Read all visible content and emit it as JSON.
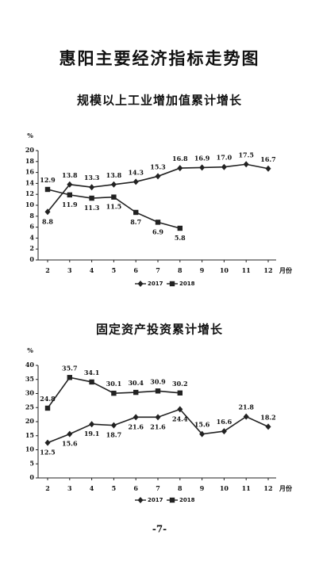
{
  "page_title": "惠阳主要经济指标走势图",
  "page_number": "-7-",
  "chart_data": [
    {
      "type": "line",
      "title": "规模以上工业增加值累计增长",
      "y_label": "%",
      "x_label": "月份",
      "categories": [
        "2",
        "3",
        "4",
        "5",
        "6",
        "7",
        "8",
        "9",
        "10",
        "11",
        "12"
      ],
      "ylim": [
        0,
        20
      ],
      "yticks": [
        0,
        2,
        4,
        6,
        8,
        10,
        12,
        14,
        16,
        18,
        20
      ],
      "series": [
        {
          "name": "2017",
          "color": "#222222",
          "marker": "diamond",
          "values": [
            8.8,
            13.8,
            13.3,
            13.8,
            14.3,
            15.3,
            16.8,
            16.9,
            17.0,
            17.5,
            16.7
          ],
          "value_labels": [
            "8.8",
            "13.8",
            "13.3",
            "13.8",
            "14.3",
            "15.3",
            "16.8",
            "16.9",
            "17.0",
            "17.5",
            "16.7"
          ]
        },
        {
          "name": "2018",
          "color": "#222222",
          "marker": "square",
          "values": [
            12.9,
            11.9,
            11.3,
            11.5,
            8.7,
            6.9,
            5.8,
            null,
            null,
            null,
            null
          ],
          "value_labels": [
            "12.9",
            "11.9",
            "11.3",
            "11.5",
            "8.7",
            "6.9",
            "5.8",
            null,
            null,
            null,
            null
          ]
        }
      ]
    },
    {
      "type": "line",
      "title": "固定资产投资累计增长",
      "y_label": "%",
      "x_label": "月份",
      "categories": [
        "2",
        "3",
        "4",
        "5",
        "6",
        "7",
        "8",
        "9",
        "10",
        "11",
        "12"
      ],
      "ylim": [
        0,
        40
      ],
      "yticks": [
        0,
        5,
        10,
        15,
        20,
        25,
        30,
        35,
        40
      ],
      "series": [
        {
          "name": "2017",
          "color": "#222222",
          "marker": "diamond",
          "values": [
            12.5,
            15.6,
            19.1,
            18.7,
            21.6,
            21.6,
            24.4,
            15.6,
            16.6,
            21.8,
            18.2
          ],
          "value_labels": [
            "12.5",
            "15.6",
            "19.1",
            "18.7",
            "21.6",
            "21.6",
            "24.4",
            "15.6",
            "16.6",
            "21.8",
            "18.2"
          ]
        },
        {
          "name": "2018",
          "color": "#222222",
          "marker": "square",
          "values": [
            24.8,
            35.7,
            34.1,
            30.1,
            30.4,
            30.9,
            30.2,
            null,
            null,
            null,
            null
          ],
          "value_labels": [
            "24.8",
            "35.7",
            "34.1",
            "30.1",
            "30.4",
            "30.9",
            "30.2",
            null,
            null,
            null,
            null
          ]
        }
      ]
    }
  ]
}
